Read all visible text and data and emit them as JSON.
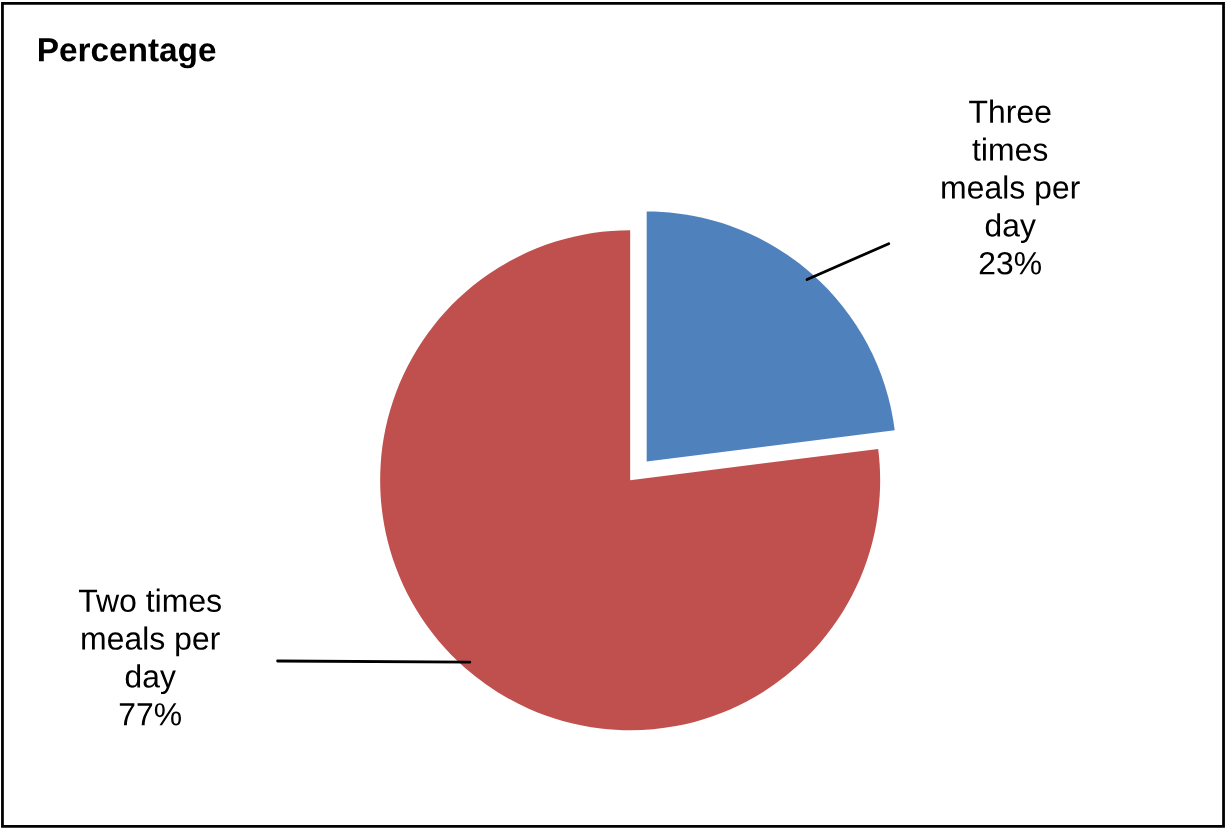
{
  "chart_data": {
    "type": "pie",
    "title": "Percentage",
    "categories": [
      "Three times meals per day",
      "Two times meals per day"
    ],
    "values": [
      23,
      77
    ],
    "colors": [
      "#4f81bd",
      "#c0504d"
    ],
    "value_labels": [
      "23%",
      "77%"
    ],
    "legend": false
  }
}
